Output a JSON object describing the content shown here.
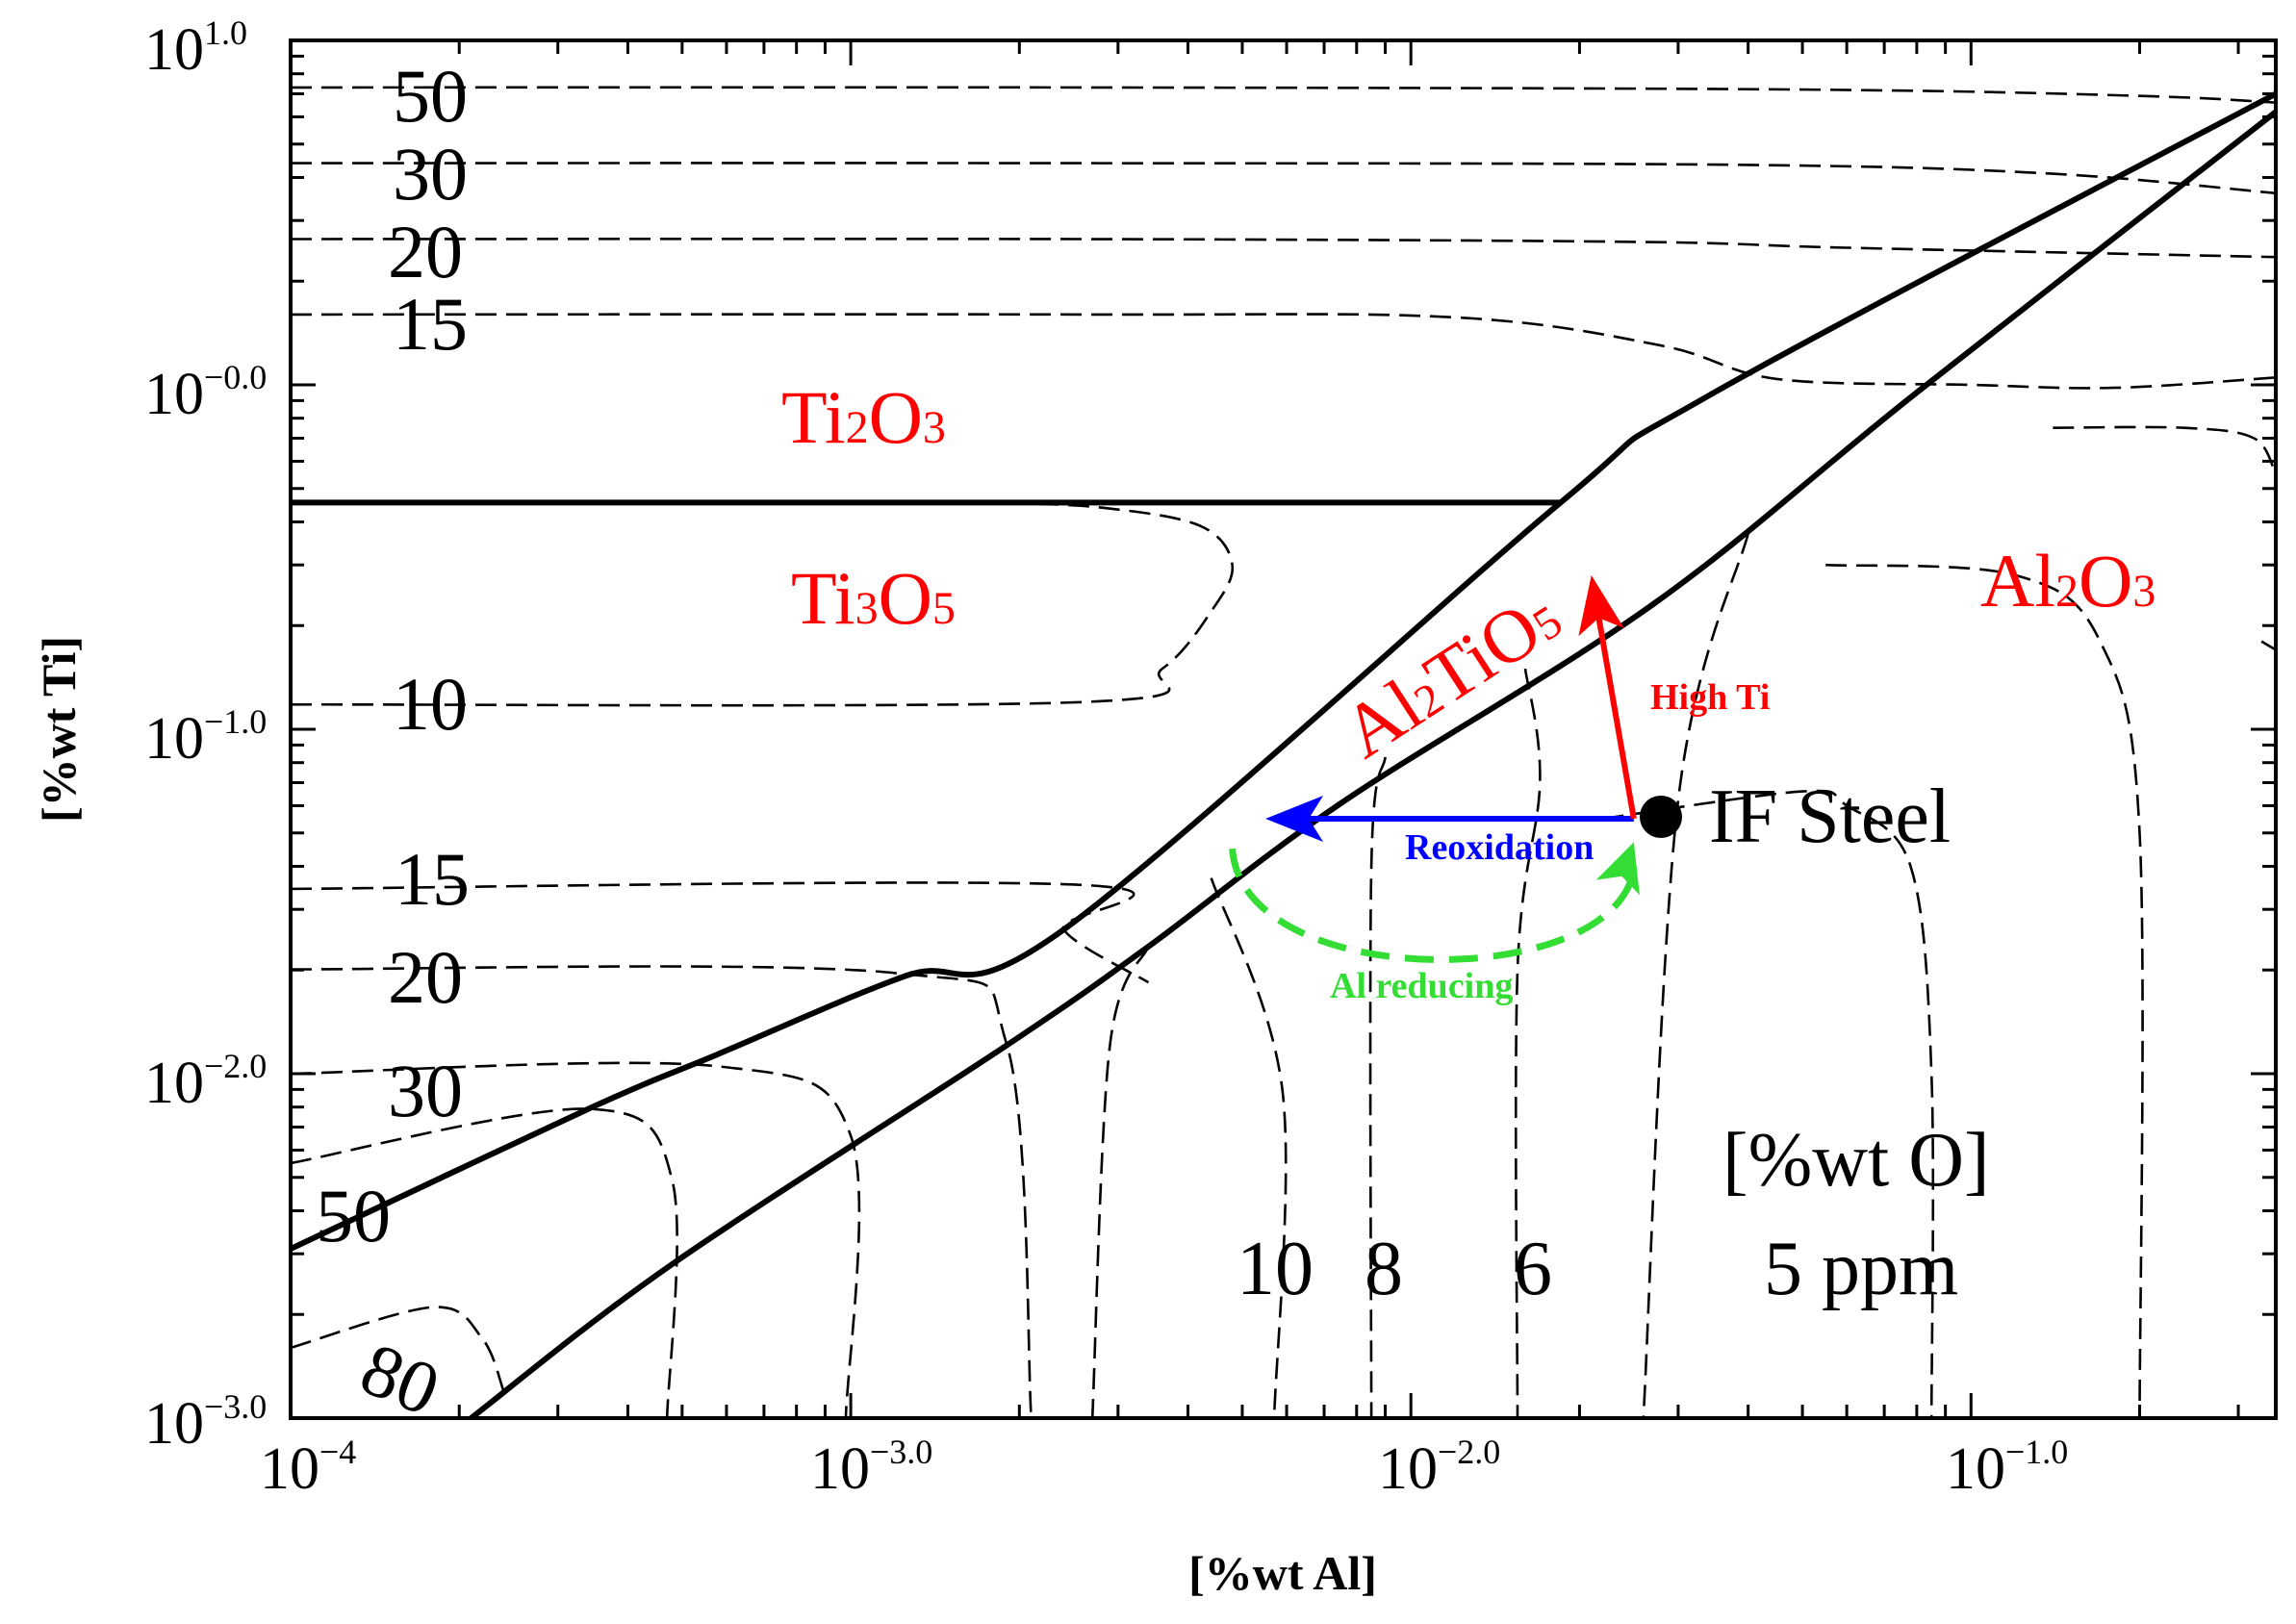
{
  "chart_data": {
    "type": "line",
    "title": "",
    "xlabel": "[%wt Al]",
    "ylabel": "[%wt Ti]",
    "xscale": "log",
    "yscale": "log",
    "xlim": [
      0.0001,
      0.35
    ],
    "ylim": [
      0.001,
      10
    ],
    "x_ticks": [
      {
        "base": "10",
        "exp": "−4",
        "value": 0.0001
      },
      {
        "base": "10",
        "exp": "−3.0",
        "value": 0.001
      },
      {
        "base": "10",
        "exp": "−2.0",
        "value": 0.01
      },
      {
        "base": "10",
        "exp": "−1.0",
        "value": 0.1
      }
    ],
    "y_ticks": [
      {
        "base": "10",
        "exp": "1.0",
        "value": 10
      },
      {
        "base": "10",
        "exp": "−0.0",
        "value": 1
      },
      {
        "base": "10",
        "exp": "−1.0",
        "value": 0.1
      },
      {
        "base": "10",
        "exp": "−2.0",
        "value": 0.01
      },
      {
        "base": "10",
        "exp": "−3.0",
        "value": 0.001
      }
    ],
    "phase_boundaries": [
      {
        "name": "Ti2O3/Ti3O5",
        "points": [
          [
            0.0001,
            0.455
          ],
          [
            0.0185,
            0.455
          ]
        ]
      },
      {
        "name": "Ti3O5/Al2TiO5",
        "points": [
          [
            0.0001,
            0.0031
          ],
          [
            0.00034,
            0.0079
          ],
          [
            0.00058,
            0.0114
          ],
          [
            0.00125,
            0.0192
          ],
          [
            0.0024,
            0.0262
          ],
          [
            0.0185,
            0.455
          ],
          [
            0.034,
            0.93
          ],
          [
            0.35,
            7.0
          ]
        ]
      },
      {
        "name": "Al2TiO5/Al2O3",
        "points": [
          [
            0.00021,
            0.001
          ],
          [
            0.00048,
            0.0028
          ],
          [
            0.0019,
            0.0121
          ],
          [
            0.0034,
            0.0234
          ],
          [
            0.0075,
            0.061
          ],
          [
            0.027,
            0.23
          ],
          [
            0.08,
            0.95
          ],
          [
            0.35,
            6.2
          ]
        ]
      }
    ],
    "oxygen_isolines_ppm": [
      {
        "label": "50",
        "points": [
          [
            0.0001,
            7.3
          ],
          [
            0.0026,
            7.3
          ],
          [
            0.05,
            7.2
          ],
          [
            0.2,
            6.9
          ],
          [
            0.35,
            6.6
          ]
        ]
      },
      {
        "label": "30",
        "points": [
          [
            0.0001,
            4.4
          ],
          [
            0.0026,
            4.4
          ],
          [
            0.04,
            4.35
          ],
          [
            0.14,
            4.1
          ],
          [
            0.35,
            3.6
          ]
        ]
      },
      {
        "label": "20",
        "points": [
          [
            0.0001,
            2.65
          ],
          [
            0.0026,
            2.65
          ],
          [
            0.025,
            2.6
          ],
          [
            0.06,
            2.5
          ],
          [
            0.35,
            2.35
          ]
        ]
      },
      {
        "label": "15",
        "points": [
          [
            0.0001,
            1.6
          ],
          [
            0.0026,
            1.6
          ],
          [
            0.012,
            1.57
          ],
          [
            0.028,
            1.3
          ],
          [
            0.045,
            1.04
          ],
          [
            0.1,
            1.0
          ],
          [
            0.18,
            0.98
          ],
          [
            0.35,
            1.05
          ]
        ]
      },
      {
        "label": "10",
        "points": [
          [
            0.0001,
            0.118
          ],
          [
            0.0026,
            0.12
          ],
          [
            0.0036,
            0.15
          ],
          [
            0.0044,
            0.22
          ],
          [
            0.0048,
            0.3
          ],
          [
            0.0042,
            0.39
          ],
          [
            0.0028,
            0.44
          ],
          [
            0.0018,
            0.455
          ]
        ]
      },
      {
        "label": "15",
        "points": [
          [
            0.0001,
            0.0344
          ],
          [
            0.0026,
            0.0353
          ],
          [
            0.0024,
            0.0262
          ],
          [
            0.0034,
            0.0184
          ]
        ]
      },
      {
        "label": "20",
        "points": [
          [
            0.0001,
            0.0201
          ],
          [
            0.0012,
            0.0196
          ],
          [
            0.0019,
            0.0121
          ],
          [
            0.0021,
            0.001
          ]
        ]
      },
      {
        "label": "30",
        "points": [
          [
            0.0001,
            0.01
          ],
          [
            0.00058,
            0.0105
          ],
          [
            0.001,
            0.0066
          ],
          [
            0.00098,
            0.001
          ]
        ]
      },
      {
        "label": "50",
        "points": [
          [
            0.0001,
            0.0055
          ],
          [
            0.00034,
            0.0079
          ],
          [
            0.00048,
            0.0049
          ],
          [
            0.00047,
            0.001
          ]
        ]
      },
      {
        "label": "80",
        "points": [
          [
            0.0001,
            0.0016
          ],
          [
            0.00018,
            0.0021
          ],
          [
            0.00022,
            0.0017
          ],
          [
            0.00024,
            0.0012
          ]
        ]
      },
      {
        "label": "10",
        "points": [
          [
            0.0034,
            0.0234
          ],
          [
            0.0029,
            0.012
          ],
          [
            0.0027,
            0.001
          ]
        ]
      },
      {
        "label": "8",
        "points": [
          [
            0.0044,
            0.037
          ],
          [
            0.0059,
            0.0089
          ],
          [
            0.0057,
            0.001
          ]
        ]
      },
      {
        "label": "8",
        "points": [
          [
            0.009,
            0.083
          ],
          [
            0.0085,
            0.04
          ],
          [
            0.0085,
            0.001
          ]
        ]
      },
      {
        "label": "6",
        "points": [
          [
            0.016,
            0.15
          ],
          [
            0.017,
            0.07
          ],
          [
            0.0155,
            0.02
          ],
          [
            0.0155,
            0.001
          ]
        ]
      },
      {
        "label": "5",
        "points": [
          [
            0.04,
            0.37
          ],
          [
            0.03,
            0.062
          ],
          [
            0.026,
            0.001
          ]
        ]
      },
      {
        "label": "5",
        "points": [
          [
            0.022,
            0.055
          ],
          [
            0.05,
            0.066
          ],
          [
            0.06,
            0.06
          ],
          [
            0.078,
            0.04
          ],
          [
            0.085,
            0.01
          ],
          [
            0.085,
            0.001
          ]
        ]
      },
      {
        "label": "5",
        "points": [
          [
            0.055,
            0.3
          ],
          [
            0.12,
            0.28
          ],
          [
            0.17,
            0.18
          ],
          [
            0.2,
            0.05
          ],
          [
            0.2,
            0.001
          ]
        ]
      },
      {
        "label": "5",
        "points": [
          [
            0.14,
            0.75
          ],
          [
            0.24,
            0.75
          ],
          [
            0.32,
            0.7
          ],
          [
            0.35,
            0.55
          ]
        ]
      },
      {
        "label": "5",
        "points": [
          [
            0.33,
            0.18
          ],
          [
            0.35,
            0.17
          ]
        ]
      }
    ],
    "if_steel_point": {
      "x": 0.025,
      "y": 0.055,
      "label": "IF Steel"
    },
    "arrows": [
      {
        "name": "Reoxidation",
        "color": "#0000ff",
        "from": [
          0.025,
          0.055
        ],
        "to": [
          0.0055,
          0.055
        ]
      },
      {
        "name": "High Ti",
        "color": "#ff0000",
        "from": [
          0.025,
          0.055
        ],
        "to": [
          0.021,
          0.28
        ]
      },
      {
        "name": "Al reducing",
        "color": "#33dd33",
        "from": [
          0.0048,
          0.045
        ],
        "to": [
          0.025,
          0.047
        ]
      }
    ],
    "annotations": {
      "reoxidation": "Reoxidation",
      "high_ti": "High Ti",
      "al_reducing": "Al reducing",
      "if_steel": "IF Steel",
      "o_title": "[%wt O]",
      "o_unit": "5 ppm",
      "o_10": "10",
      "o_8": "8",
      "o_6": "6"
    },
    "contour_labels_left": {
      "top_50": "50",
      "top_30": "30",
      "top_20": "20",
      "top_15": "15",
      "mid_10": "10",
      "low_15": "15",
      "low_20": "20",
      "low_30": "30",
      "low_50": "50",
      "low_80": "80"
    },
    "phase_labels": [
      {
        "id": "ti2o3",
        "main1": "Ti",
        "sub1": "2",
        "main2": "O",
        "sub2": "3",
        "color": "#ff0000"
      },
      {
        "id": "ti3o5",
        "main1": "Ti",
        "sub1": "3",
        "main2": "O",
        "sub2": "5",
        "color": "#ff0000"
      },
      {
        "id": "al2tio5",
        "main1": "Al",
        "sub1": "2",
        "main2": "TiO",
        "sub2": "5",
        "color": "#ff0000"
      },
      {
        "id": "al2o3",
        "main1": "Al",
        "sub1": "2",
        "main2": "O",
        "sub2": "3",
        "color": "#ff0000"
      }
    ],
    "colors": {
      "phase_text": "#ff0000",
      "reoxidation": "#0000ff",
      "high_ti": "#ff0000",
      "al_reducing": "#33dd33"
    }
  }
}
